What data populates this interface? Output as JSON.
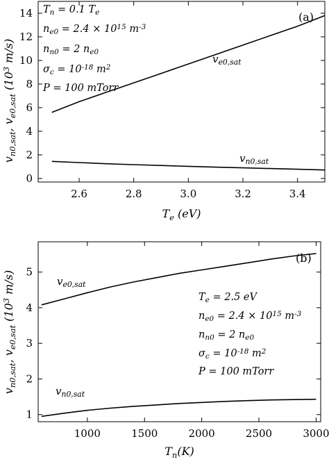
{
  "chart_data": [
    {
      "type": "line",
      "panel_label": "(a)",
      "xlabel": "T_e (eV)",
      "ylabel": "v_n0,sat, v_e0,sat (10^3 m/s)",
      "xlim": [
        2.45,
        3.5
      ],
      "ylim": [
        -0.3,
        15
      ],
      "x_ticks": [
        2.6,
        2.8,
        3.0,
        3.2,
        3.4
      ],
      "x_tick_labels": [
        "2.6",
        "2.8",
        "3.0",
        "3.2",
        "3.4"
      ],
      "y_ticks": [
        0,
        2,
        4,
        6,
        8,
        10,
        12,
        14
      ],
      "y_tick_labels": [
        "0",
        "2",
        "4",
        "6",
        "8",
        "10",
        "12",
        "14"
      ],
      "params": [
        "T_n = 0.1 T_e",
        "n_e0 = 2.4 × 10^15 m^-3",
        "n_n0 = 2 n_e0",
        "σ_c = 10^-18 m^2",
        "P = 100 mTorr"
      ],
      "series": [
        {
          "name": "v_e0,sat",
          "x": [
            2.5,
            2.6,
            2.7,
            2.8,
            2.9,
            3.0,
            3.1,
            3.2,
            3.3,
            3.4,
            3.5
          ],
          "y": [
            5.6,
            6.5,
            7.3,
            8.1,
            8.9,
            9.7,
            10.5,
            11.3,
            12.1,
            12.9,
            13.8
          ]
        },
        {
          "name": "v_n0,sat",
          "x": [
            2.5,
            2.6,
            2.7,
            2.8,
            2.9,
            3.0,
            3.1,
            3.2,
            3.3,
            3.4,
            3.5
          ],
          "y": [
            1.45,
            1.35,
            1.25,
            1.17,
            1.1,
            1.03,
            0.96,
            0.9,
            0.84,
            0.78,
            0.72
          ]
        }
      ]
    },
    {
      "type": "line",
      "panel_label": "(b)",
      "xlabel": "T_n(K)",
      "ylabel": "v_n0,sat, v_e0,sat (10^3 m/s)",
      "xlim": [
        570,
        3040
      ],
      "ylim": [
        0.8,
        5.85
      ],
      "x_ticks": [
        1000,
        1500,
        2000,
        2500,
        3000
      ],
      "x_tick_labels": [
        "1000",
        "1500",
        "2000",
        "2500",
        "3000"
      ],
      "y_ticks": [
        1,
        2,
        3,
        4,
        5
      ],
      "y_tick_labels": [
        "1",
        "2",
        "3",
        "4",
        "5"
      ],
      "params": [
        "T_e = 2.5 eV",
        "n_e0 = 2.4 × 10^15 m^-3",
        "n_n0 = 2 n_e0",
        "σ_c = 10^-18 m^2",
        "P = 100 mTorr"
      ],
      "series": [
        {
          "name": "v_e0,sat",
          "x": [
            600,
            800,
            1000,
            1200,
            1400,
            1600,
            1800,
            2000,
            2200,
            2400,
            2600,
            2800,
            3000
          ],
          "y": [
            4.08,
            4.25,
            4.42,
            4.58,
            4.72,
            4.84,
            4.96,
            5.06,
            5.16,
            5.26,
            5.36,
            5.45,
            5.52
          ]
        },
        {
          "name": "v_n0,sat",
          "x": [
            600,
            800,
            1000,
            1200,
            1400,
            1600,
            1800,
            2000,
            2200,
            2400,
            2600,
            2800,
            3000
          ],
          "y": [
            0.95,
            1.04,
            1.12,
            1.18,
            1.23,
            1.27,
            1.31,
            1.34,
            1.37,
            1.39,
            1.41,
            1.42,
            1.43
          ]
        }
      ]
    }
  ]
}
